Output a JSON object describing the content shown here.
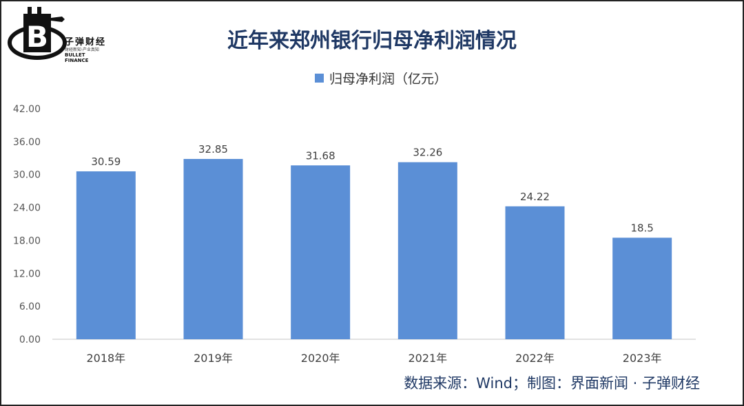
{
  "brand": {
    "logo_letter": "B",
    "name_cn": "子弹财经",
    "tagline": "财经新知·产业真知",
    "name_en": "BULLET FINANCE"
  },
  "colors": {
    "bar": "#5b8fd6",
    "title": "#1f3864",
    "axis": "#d9d9d9"
  },
  "chart_data": {
    "type": "bar",
    "title": "近年来郑州银行归母净利润情况",
    "categories": [
      "2018年",
      "2019年",
      "2020年",
      "2021年",
      "2022年",
      "2023年"
    ],
    "series": [
      {
        "name": "归母净利润（亿元）",
        "values": [
          30.59,
          32.85,
          31.68,
          32.26,
          24.22,
          18.5
        ]
      }
    ],
    "data_labels": [
      "30.59",
      "32.85",
      "31.68",
      "32.26",
      "24.22",
      "18.5"
    ],
    "y_ticks": [
      "0.00",
      "6.00",
      "12.00",
      "18.00",
      "24.00",
      "30.00",
      "36.00",
      "42.00"
    ],
    "ylim": [
      0,
      42
    ],
    "grid": false,
    "legend_position": "top"
  },
  "source_note": "数据来源：Wind；制图：界面新闻 · 子弹财经"
}
